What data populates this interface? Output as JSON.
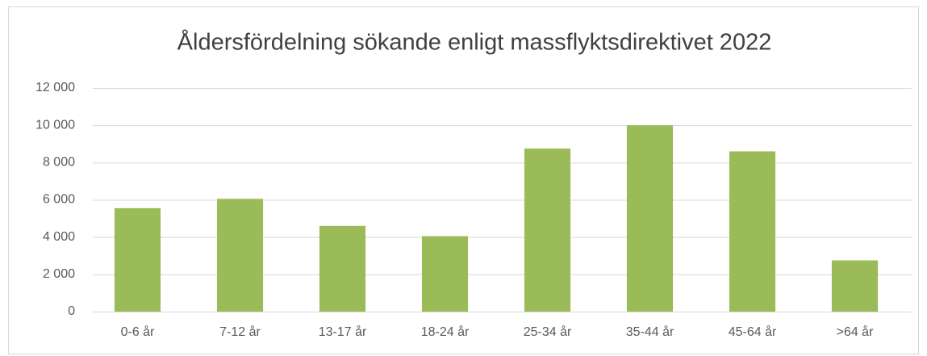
{
  "chart_data": {
    "type": "bar",
    "title": "Åldersfördelning sökande enligt massflyktsdirektivet 2022",
    "categories": [
      "0-6 år",
      "7-12 år",
      "13-17 år",
      "18-24 år",
      "25-34 år",
      "35-44 år",
      "45-64 år",
      ">64 år"
    ],
    "values": [
      5550,
      6050,
      4600,
      4050,
      8750,
      10000,
      8600,
      2750
    ],
    "color": "#9bbb59",
    "ylim": [
      0,
      12000
    ],
    "yticks": [
      0,
      {
        "value": 2000,
        "label": "2 000"
      },
      {
        "value": 4000,
        "label": "4 000"
      },
      {
        "value": 6000,
        "label": "6 000"
      },
      {
        "value": 8000,
        "label": "8 000"
      },
      {
        "value": 10000,
        "label": "10 000"
      },
      {
        "value": 12000,
        "label": "12 000"
      }
    ],
    "grid": true
  }
}
